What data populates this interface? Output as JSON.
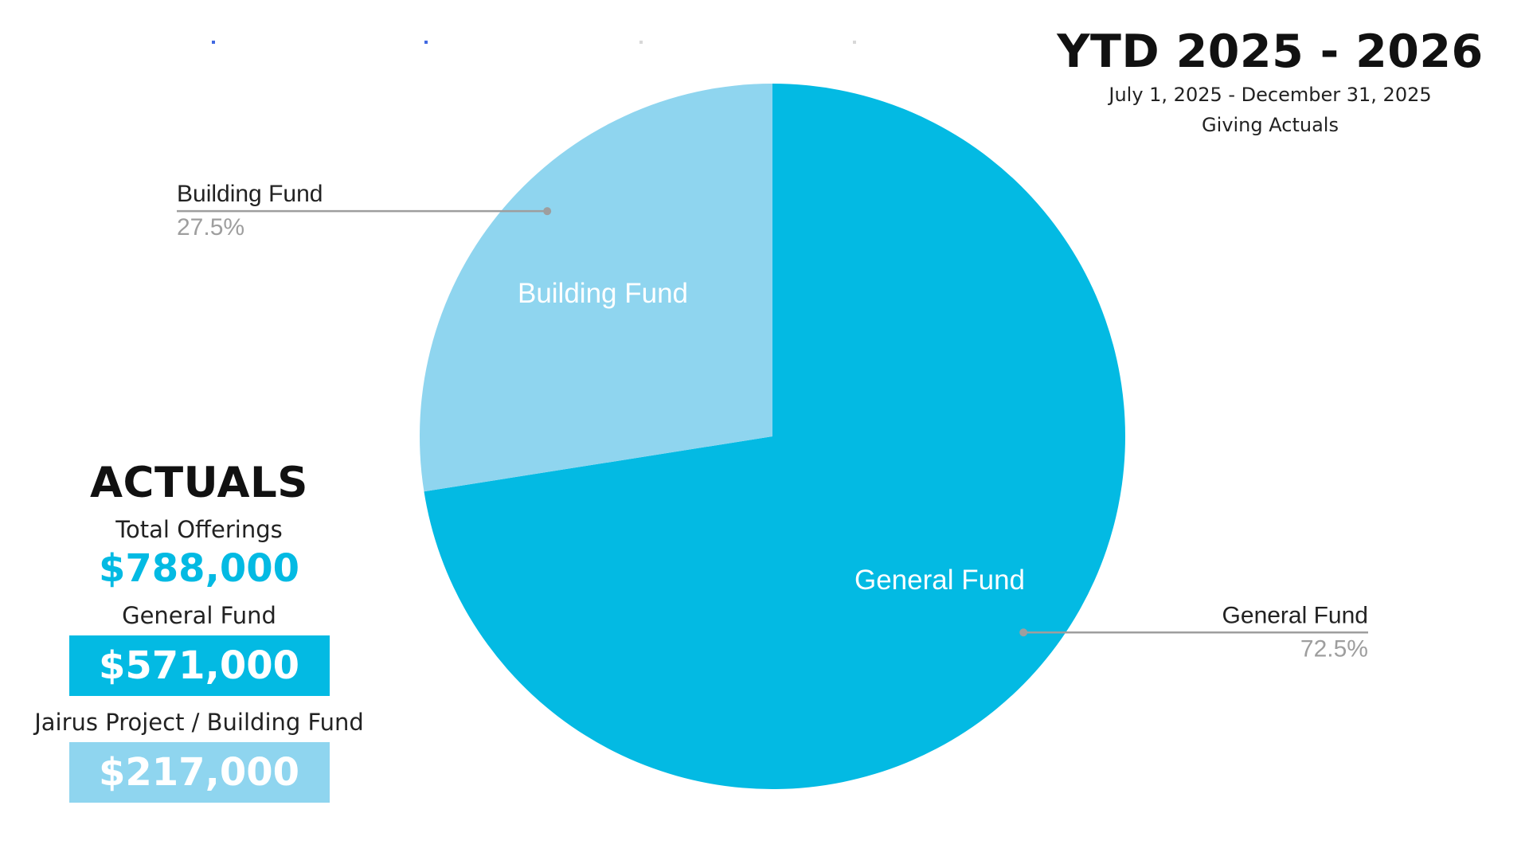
{
  "header": {
    "title": "YTD 2025 - 2026",
    "date_range": "July 1, 2025 - December 31, 2025",
    "subtitle": "Giving Actuals"
  },
  "actuals": {
    "heading": "ACTUALS",
    "total": {
      "label": "Total Offerings",
      "value": "$788,000"
    },
    "general": {
      "label": "General Fund",
      "value": "$571,000"
    },
    "building": {
      "label": "Jairus Project / Building Fund",
      "value": "$217,000"
    }
  },
  "colors": {
    "general_fund": "#03bae3",
    "building_fund": "#8fd5ef",
    "leader_line": "#9e9e9e",
    "callout_label": "#222222",
    "callout_percent": "#9e9e9e",
    "deco_blue": "#4169e1",
    "deco_gray": "#d8d8d8"
  },
  "chart_data": {
    "type": "pie",
    "slices": [
      {
        "label": "General Fund",
        "percent_label": "72.5%",
        "value": 72.5,
        "color": "#03bae3"
      },
      {
        "label": "Building Fund",
        "percent_label": "27.5%",
        "value": 27.5,
        "color": "#8fd5ef"
      }
    ],
    "start_angle_deg": 0,
    "direction": "clockwise",
    "inside_labels": true,
    "callouts": "leader-lines",
    "legend": "none"
  }
}
